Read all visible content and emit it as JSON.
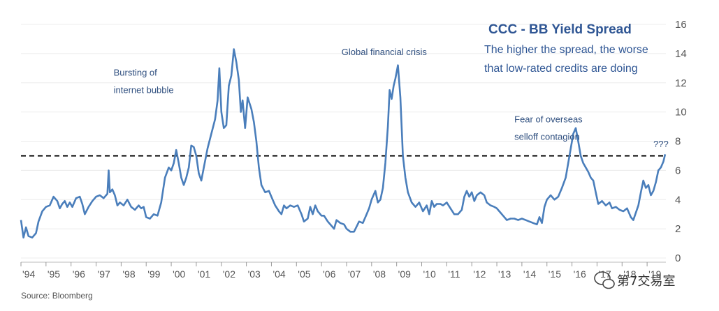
{
  "chart_data": {
    "type": "line",
    "title": "CCC - BB Yield Spread",
    "subtitle_lines": [
      "The higher the spread, the worse",
      "that low-rated credits are doing"
    ],
    "source": "Source:  Bloomberg",
    "watermark": "第7交易室",
    "ylim": [
      0,
      16
    ],
    "y_ticks": [
      "0",
      "2",
      "4",
      "6",
      "8",
      "10",
      "12",
      "14",
      "16"
    ],
    "xlim": [
      1994,
      2019.75
    ],
    "x_ticks": [
      {
        "label": "'94",
        "year": 1994
      },
      {
        "label": "'95",
        "year": 1995
      },
      {
        "label": "'96",
        "year": 1996
      },
      {
        "label": "'97",
        "year": 1997
      },
      {
        "label": "'98",
        "year": 1998
      },
      {
        "label": "'99",
        "year": 1999
      },
      {
        "label": "'00",
        "year": 2000
      },
      {
        "label": "'01",
        "year": 2001
      },
      {
        "label": "'02",
        "year": 2002
      },
      {
        "label": "'03",
        "year": 2003
      },
      {
        "label": "'04",
        "year": 2004
      },
      {
        "label": "'05",
        "year": 2005
      },
      {
        "label": "'06",
        "year": 2006
      },
      {
        "label": "'07",
        "year": 2007
      },
      {
        "label": "'08",
        "year": 2008
      },
      {
        "label": "'09",
        "year": 2009
      },
      {
        "label": "'10",
        "year": 2010
      },
      {
        "label": "'11",
        "year": 2011
      },
      {
        "label": "'12",
        "year": 2012
      },
      {
        "label": "'13",
        "year": 2013
      },
      {
        "label": "'14",
        "year": 2014
      },
      {
        "label": "'15",
        "year": 2015
      },
      {
        "label": "'16",
        "year": 2016
      },
      {
        "label": "'17",
        "year": 2017
      },
      {
        "label": "'18",
        "year": 2018
      },
      {
        "label": "'19",
        "year": 2019
      }
    ],
    "reference_line": 7,
    "annotations": [
      {
        "lines": [
          "Bursting of",
          "internet bubble"
        ],
        "x": 1997.7,
        "y": 12.5
      },
      {
        "lines": [
          "Global financial crisis"
        ],
        "x": 2006.8,
        "y": 13.9
      },
      {
        "lines": [
          "Fear of overseas",
          "selloff contagion"
        ],
        "x": 2013.7,
        "y": 9.3
      },
      {
        "lines": [
          "???"
        ],
        "x": 2019.25,
        "y": 7.6
      }
    ],
    "grid": true,
    "series": [
      {
        "color": "#4a7ebb",
        "points": [
          [
            1994.0,
            2.6
          ],
          [
            1994.1,
            1.4
          ],
          [
            1994.2,
            2.1
          ],
          [
            1994.3,
            1.5
          ],
          [
            1994.45,
            1.4
          ],
          [
            1994.6,
            1.7
          ],
          [
            1994.7,
            2.5
          ],
          [
            1994.85,
            3.2
          ],
          [
            1995.0,
            3.5
          ],
          [
            1995.15,
            3.6
          ],
          [
            1995.3,
            4.2
          ],
          [
            1995.45,
            3.9
          ],
          [
            1995.55,
            3.4
          ],
          [
            1995.65,
            3.7
          ],
          [
            1995.75,
            3.9
          ],
          [
            1995.85,
            3.5
          ],
          [
            1995.95,
            3.8
          ],
          [
            1996.05,
            3.5
          ],
          [
            1996.2,
            4.1
          ],
          [
            1996.35,
            4.2
          ],
          [
            1996.45,
            3.7
          ],
          [
            1996.55,
            3.0
          ],
          [
            1996.7,
            3.5
          ],
          [
            1996.85,
            3.9
          ],
          [
            1997.0,
            4.2
          ],
          [
            1997.15,
            4.3
          ],
          [
            1997.3,
            4.1
          ],
          [
            1997.45,
            4.4
          ],
          [
            1997.5,
            6.0
          ],
          [
            1997.55,
            4.5
          ],
          [
            1997.65,
            4.7
          ],
          [
            1997.75,
            4.3
          ],
          [
            1997.85,
            3.6
          ],
          [
            1997.95,
            3.8
          ],
          [
            1998.1,
            3.6
          ],
          [
            1998.25,
            4.0
          ],
          [
            1998.4,
            3.5
          ],
          [
            1998.55,
            3.3
          ],
          [
            1998.7,
            3.6
          ],
          [
            1998.8,
            3.4
          ],
          [
            1998.9,
            3.5
          ],
          [
            1999.0,
            2.8
          ],
          [
            1999.15,
            2.7
          ],
          [
            1999.3,
            3.0
          ],
          [
            1999.45,
            2.9
          ],
          [
            1999.6,
            3.8
          ],
          [
            1999.75,
            5.5
          ],
          [
            1999.9,
            6.2
          ],
          [
            2000.0,
            6.0
          ],
          [
            2000.1,
            6.5
          ],
          [
            2000.2,
            7.4
          ],
          [
            2000.3,
            6.5
          ],
          [
            2000.4,
            5.5
          ],
          [
            2000.5,
            5.0
          ],
          [
            2000.6,
            5.5
          ],
          [
            2000.7,
            6.2
          ],
          [
            2000.8,
            7.7
          ],
          [
            2000.9,
            7.6
          ],
          [
            2001.0,
            7.0
          ],
          [
            2001.1,
            5.8
          ],
          [
            2001.2,
            5.3
          ],
          [
            2001.3,
            6.2
          ],
          [
            2001.45,
            7.5
          ],
          [
            2001.6,
            8.5
          ],
          [
            2001.75,
            9.5
          ],
          [
            2001.85,
            10.8
          ],
          [
            2001.92,
            13.0
          ],
          [
            2002.0,
            10.0
          ],
          [
            2002.1,
            8.9
          ],
          [
            2002.2,
            9.1
          ],
          [
            2002.3,
            11.8
          ],
          [
            2002.4,
            12.5
          ],
          [
            2002.5,
            14.3
          ],
          [
            2002.6,
            13.4
          ],
          [
            2002.7,
            12.2
          ],
          [
            2002.78,
            10.0
          ],
          [
            2002.85,
            10.8
          ],
          [
            2002.95,
            8.9
          ],
          [
            2003.05,
            11.0
          ],
          [
            2003.2,
            10.2
          ],
          [
            2003.3,
            9.3
          ],
          [
            2003.4,
            8.0
          ],
          [
            2003.5,
            6.2
          ],
          [
            2003.6,
            5.0
          ],
          [
            2003.75,
            4.5
          ],
          [
            2003.9,
            4.6
          ],
          [
            2004.0,
            4.2
          ],
          [
            2004.15,
            3.6
          ],
          [
            2004.3,
            3.2
          ],
          [
            2004.4,
            3.0
          ],
          [
            2004.5,
            3.6
          ],
          [
            2004.6,
            3.4
          ],
          [
            2004.75,
            3.6
          ],
          [
            2004.9,
            3.5
          ],
          [
            2005.05,
            3.6
          ],
          [
            2005.2,
            3.0
          ],
          [
            2005.3,
            2.5
          ],
          [
            2005.45,
            2.7
          ],
          [
            2005.55,
            3.5
          ],
          [
            2005.65,
            3.0
          ],
          [
            2005.75,
            3.6
          ],
          [
            2005.85,
            3.2
          ],
          [
            2006.0,
            2.9
          ],
          [
            2006.1,
            2.9
          ],
          [
            2006.25,
            2.5
          ],
          [
            2006.4,
            2.2
          ],
          [
            2006.5,
            2.0
          ],
          [
            2006.6,
            2.6
          ],
          [
            2006.75,
            2.4
          ],
          [
            2006.9,
            2.3
          ],
          [
            2007.0,
            2.0
          ],
          [
            2007.15,
            1.8
          ],
          [
            2007.3,
            1.8
          ],
          [
            2007.5,
            2.5
          ],
          [
            2007.65,
            2.4
          ],
          [
            2007.8,
            3.0
          ],
          [
            2007.9,
            3.4
          ],
          [
            2008.0,
            4.0
          ],
          [
            2008.15,
            4.6
          ],
          [
            2008.25,
            3.8
          ],
          [
            2008.35,
            4.0
          ],
          [
            2008.45,
            4.8
          ],
          [
            2008.55,
            6.5
          ],
          [
            2008.65,
            9.0
          ],
          [
            2008.72,
            11.5
          ],
          [
            2008.8,
            10.9
          ],
          [
            2008.88,
            11.8
          ],
          [
            2008.95,
            12.3
          ],
          [
            2009.05,
            13.2
          ],
          [
            2009.15,
            11.0
          ],
          [
            2009.25,
            7.0
          ],
          [
            2009.35,
            5.5
          ],
          [
            2009.45,
            4.5
          ],
          [
            2009.6,
            3.8
          ],
          [
            2009.75,
            3.5
          ],
          [
            2009.9,
            3.8
          ],
          [
            2010.05,
            3.2
          ],
          [
            2010.2,
            3.6
          ],
          [
            2010.3,
            3.0
          ],
          [
            2010.4,
            3.9
          ],
          [
            2010.5,
            3.5
          ],
          [
            2010.6,
            3.7
          ],
          [
            2010.75,
            3.7
          ],
          [
            2010.85,
            3.6
          ],
          [
            2011.0,
            3.8
          ],
          [
            2011.15,
            3.4
          ],
          [
            2011.3,
            3.0
          ],
          [
            2011.45,
            3.0
          ],
          [
            2011.6,
            3.3
          ],
          [
            2011.7,
            4.2
          ],
          [
            2011.8,
            4.6
          ],
          [
            2011.9,
            4.2
          ],
          [
            2012.0,
            4.5
          ],
          [
            2012.1,
            3.9
          ],
          [
            2012.2,
            4.3
          ],
          [
            2012.35,
            4.5
          ],
          [
            2012.5,
            4.3
          ],
          [
            2012.6,
            3.8
          ],
          [
            2012.75,
            3.6
          ],
          [
            2012.9,
            3.5
          ],
          [
            2013.0,
            3.4
          ],
          [
            2013.1,
            3.2
          ],
          [
            2013.25,
            2.9
          ],
          [
            2013.4,
            2.6
          ],
          [
            2013.55,
            2.7
          ],
          [
            2013.7,
            2.7
          ],
          [
            2013.85,
            2.6
          ],
          [
            2014.0,
            2.7
          ],
          [
            2014.15,
            2.6
          ],
          [
            2014.3,
            2.5
          ],
          [
            2014.45,
            2.4
          ],
          [
            2014.6,
            2.3
          ],
          [
            2014.7,
            2.8
          ],
          [
            2014.8,
            2.4
          ],
          [
            2014.9,
            3.5
          ],
          [
            2015.0,
            4.0
          ],
          [
            2015.15,
            4.3
          ],
          [
            2015.3,
            4.0
          ],
          [
            2015.45,
            4.2
          ],
          [
            2015.6,
            4.8
          ],
          [
            2015.75,
            5.5
          ],
          [
            2015.85,
            6.5
          ],
          [
            2015.95,
            7.5
          ],
          [
            2016.05,
            8.5
          ],
          [
            2016.15,
            8.9
          ],
          [
            2016.25,
            8.0
          ],
          [
            2016.35,
            7.0
          ],
          [
            2016.45,
            6.5
          ],
          [
            2016.55,
            6.2
          ],
          [
            2016.65,
            5.9
          ],
          [
            2016.75,
            5.5
          ],
          [
            2016.85,
            5.3
          ],
          [
            2016.95,
            4.5
          ],
          [
            2017.05,
            3.7
          ],
          [
            2017.2,
            3.9
          ],
          [
            2017.35,
            3.6
          ],
          [
            2017.5,
            3.8
          ],
          [
            2017.6,
            3.4
          ],
          [
            2017.75,
            3.5
          ],
          [
            2017.9,
            3.3
          ],
          [
            2018.05,
            3.2
          ],
          [
            2018.2,
            3.4
          ],
          [
            2018.35,
            2.8
          ],
          [
            2018.45,
            2.6
          ],
          [
            2018.55,
            3.1
          ],
          [
            2018.65,
            3.6
          ],
          [
            2018.75,
            4.5
          ],
          [
            2018.85,
            5.3
          ],
          [
            2018.95,
            4.8
          ],
          [
            2019.05,
            5.0
          ],
          [
            2019.15,
            4.3
          ],
          [
            2019.25,
            4.6
          ],
          [
            2019.35,
            5.2
          ],
          [
            2019.45,
            6.0
          ],
          [
            2019.55,
            6.2
          ],
          [
            2019.65,
            6.6
          ],
          [
            2019.72,
            7.1
          ]
        ]
      }
    ]
  }
}
